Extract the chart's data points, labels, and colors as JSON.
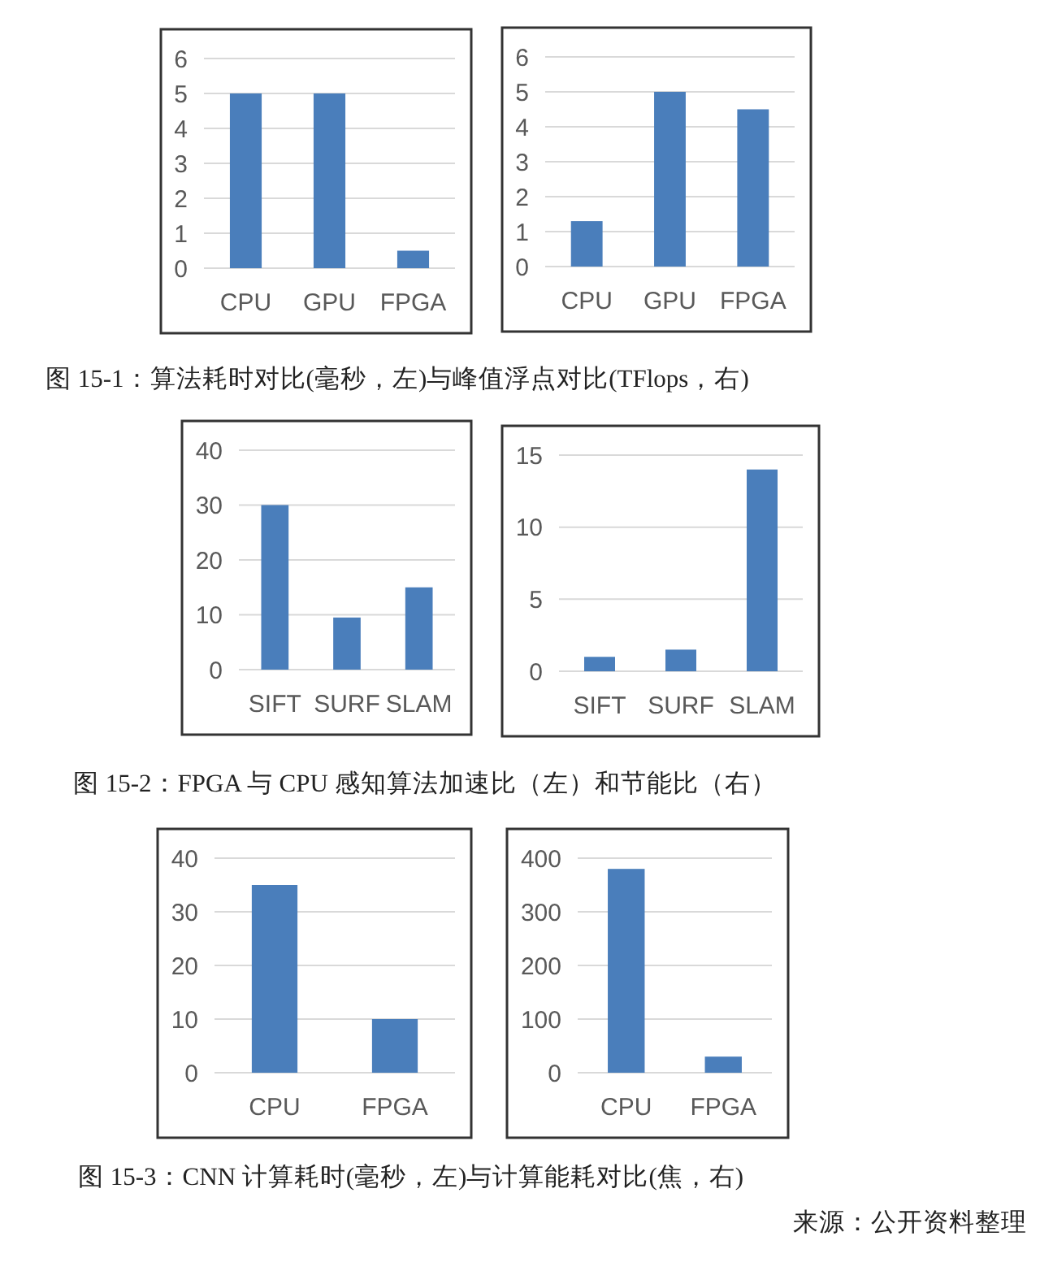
{
  "chart_data": [
    {
      "type": "bar",
      "categories": [
        "CPU",
        "GPU",
        "FPGA"
      ],
      "values": [
        5,
        5,
        0.5
      ],
      "color": "#4a7ebb",
      "ylim": [
        0,
        6
      ],
      "yticks": [
        0,
        1,
        2,
        3,
        4,
        5,
        6
      ],
      "grid": "y",
      "annotations": [
        "图 15-1：算法耗时对比(毫秒，左)与峰值浮点对比(TFlops，右)"
      ]
    },
    {
      "type": "bar",
      "categories": [
        "CPU",
        "GPU",
        "FPGA"
      ],
      "values": [
        1.3,
        5,
        4.5
      ],
      "color": "#4a7ebb",
      "ylim": [
        0,
        6
      ],
      "yticks": [
        0,
        1,
        2,
        3,
        4,
        5,
        6
      ],
      "grid": "y"
    },
    {
      "type": "bar",
      "categories": [
        "SIFT",
        "SURF",
        "SLAM"
      ],
      "values": [
        30,
        9.5,
        15
      ],
      "color": "#4a7ebb",
      "ylim": [
        0,
        40
      ],
      "yticks": [
        0,
        10,
        20,
        30,
        40
      ],
      "grid": "y",
      "annotations": [
        "图 15-2：FPGA 与 CPU 感知算法加速比（左）和节能比（右）"
      ]
    },
    {
      "type": "bar",
      "categories": [
        "SIFT",
        "SURF",
        "SLAM"
      ],
      "values": [
        1,
        1.5,
        14
      ],
      "color": "#4a7ebb",
      "ylim": [
        0,
        15
      ],
      "yticks": [
        0,
        5,
        10,
        15
      ],
      "grid": "y"
    },
    {
      "type": "bar",
      "categories": [
        "CPU",
        "FPGA"
      ],
      "values": [
        35,
        10
      ],
      "color": "#4a7ebb",
      "ylim": [
        0,
        40
      ],
      "yticks": [
        0,
        10,
        20,
        30,
        40
      ],
      "grid": "y",
      "annotations": [
        "图 15-3：CNN 计算耗时(毫秒，左)与计算能耗对比(焦，右)"
      ]
    },
    {
      "type": "bar",
      "categories": [
        "CPU",
        "FPGA"
      ],
      "values": [
        380,
        30
      ],
      "color": "#4a7ebb",
      "ylim": [
        0,
        400
      ],
      "yticks": [
        0,
        100,
        200,
        300,
        400
      ],
      "grid": "y",
      "annotations": [
        "来源：公开资料整理"
      ]
    }
  ]
}
